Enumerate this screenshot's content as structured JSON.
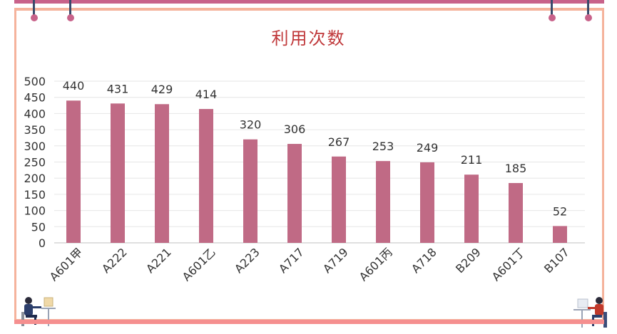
{
  "title": "利用次数",
  "chart_data": {
    "type": "bar",
    "title": "利用次数",
    "categories": [
      "A601甲",
      "A222",
      "A221",
      "A601乙",
      "A223",
      "A717",
      "A719",
      "A601丙",
      "A718",
      "B209",
      "A601丁",
      "B107"
    ],
    "series": [
      {
        "values": [
          440,
          431,
          429,
          414,
          320,
          306,
          267,
          253,
          249,
          211,
          185,
          52
        ]
      }
    ],
    "ylim": [
      0,
      500
    ],
    "yticks": [
      0,
      50,
      100,
      150,
      200,
      250,
      300,
      350,
      400,
      450,
      500
    ],
    "grid": true,
    "data_labels": true,
    "bar_color": "#c06a85"
  },
  "colors": {
    "top_rule": "#c8628a",
    "frame": "#f5b39c",
    "bottom_rule": "#f58f8f",
    "title": "#c0393b"
  },
  "decorations": {
    "left_illustration": "person-at-desk-icon",
    "right_illustration": "person-at-desk-icon"
  }
}
